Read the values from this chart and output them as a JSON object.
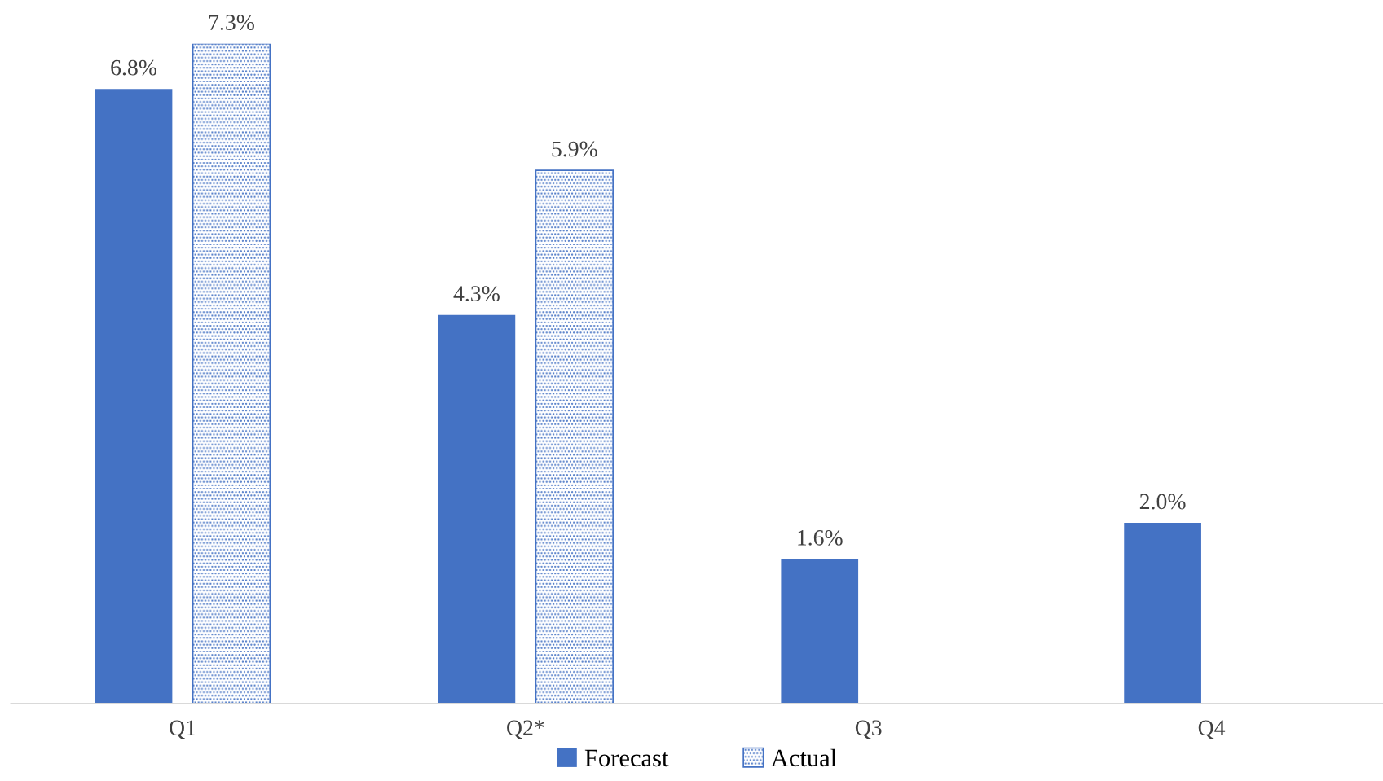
{
  "chart_data": {
    "type": "bar",
    "categories": [
      "Q1",
      "Q2*",
      "Q3",
      "Q4"
    ],
    "series": [
      {
        "name": "Forecast",
        "color": "#4472c4",
        "values": [
          6.8,
          4.3,
          1.6,
          2.0
        ],
        "value_labels": [
          "6.8%",
          "4.3%",
          "1.6%",
          "2.0%"
        ]
      },
      {
        "name": "Actual",
        "color": "#4472c4",
        "values": [
          7.3,
          5.9,
          null,
          null
        ],
        "value_labels": [
          "7.3%",
          "5.9%",
          null,
          null
        ]
      }
    ],
    "grid": false,
    "legend": "bottom"
  }
}
